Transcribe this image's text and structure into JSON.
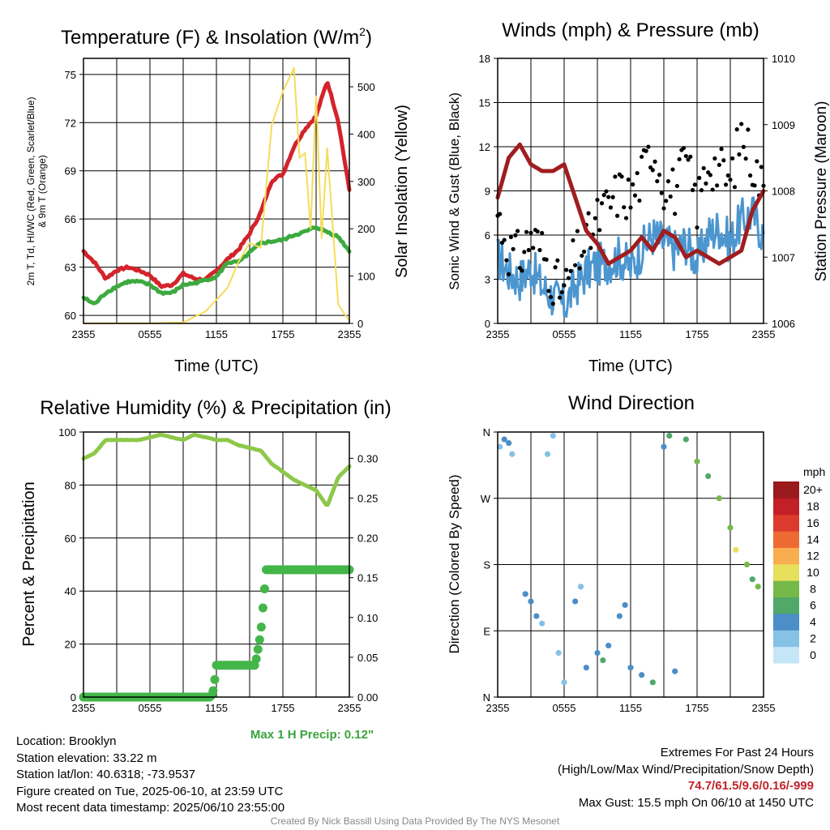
{
  "colors": {
    "temp": "#d4232b",
    "dewpoint": "#3caa3f",
    "insolation": "#f6dc5a",
    "wind": "#4c96d0",
    "gust": "#000000",
    "pressure": "#a01d1f",
    "rh": "#8dc84a",
    "precip": "#43b649"
  },
  "chart_data": [
    {
      "type": "line",
      "title": "Temperature (F) & Insolation (W/m²)",
      "xlabel": "Time (UTC)",
      "ylabel_left": "2m T, Td, HI/WC (Red, Green, Scarlet/Blue) & 9m T (Orange)",
      "ylabel_right": "Solar Insolation (Yellow)",
      "xlim": [
        0,
        24
      ],
      "ylim_left": [
        59.5,
        76
      ],
      "ylim_right": [
        0,
        560
      ],
      "x_ticks": [
        "2355",
        "0555",
        "1155",
        "1755",
        "2355"
      ],
      "y_ticks_left": [
        "60",
        "63",
        "66",
        "69",
        "72",
        "75"
      ],
      "y_ticks_right": [
        "0",
        "100",
        "200",
        "300",
        "400",
        "500"
      ],
      "grid": true,
      "series": [
        {
          "name": "2m T",
          "axis": "left",
          "color_key": "temp",
          "x": [
            0,
            1,
            2,
            3,
            4,
            5,
            6,
            7,
            8,
            9,
            10,
            11,
            12,
            13,
            14,
            15,
            16,
            17,
            18,
            19,
            20,
            21,
            22,
            23,
            24
          ],
          "values": [
            64.0,
            63.3,
            62.3,
            62.8,
            63.0,
            62.8,
            62.5,
            61.8,
            61.9,
            62.6,
            62.3,
            62.2,
            62.8,
            63.5,
            64.1,
            65.1,
            66.4,
            68.4,
            68.8,
            70.5,
            71.6,
            72.4,
            74.6,
            72.1,
            67.8
          ]
        },
        {
          "name": "2m Td",
          "axis": "left",
          "color_key": "dewpoint",
          "x": [
            0,
            1,
            2,
            3,
            4,
            5,
            6,
            7,
            8,
            9,
            10,
            11,
            12,
            13,
            14,
            15,
            16,
            17,
            18,
            19,
            20,
            21,
            22,
            23,
            24
          ],
          "values": [
            61.1,
            60.7,
            61.4,
            61.8,
            62.1,
            62.1,
            61.9,
            61.4,
            61.4,
            61.9,
            62.0,
            62.2,
            62.4,
            63.3,
            63.3,
            63.9,
            64.5,
            64.6,
            64.7,
            65.0,
            65.2,
            65.5,
            65.2,
            64.9,
            64.0
          ]
        },
        {
          "name": "Solar Insolation",
          "axis": "right",
          "color_key": "insolation",
          "x": [
            0,
            6,
            9,
            11,
            12,
            13,
            14,
            15,
            16,
            17,
            18,
            19,
            19.5,
            20,
            20.5,
            21,
            21.5,
            22,
            23,
            24
          ],
          "values": [
            0,
            0,
            2,
            25,
            50,
            75,
            130,
            170,
            160,
            420,
            490,
            540,
            350,
            360,
            200,
            480,
            180,
            370,
            40,
            5
          ]
        }
      ]
    },
    {
      "type": "line",
      "title": "Winds (mph) & Pressure (mb)",
      "xlabel": "Time (UTC)",
      "ylabel_left": "Sonic Wind & Gust (Blue, Black)",
      "ylabel_right": "Station Pressure (Maroon)",
      "xlim": [
        0,
        24
      ],
      "ylim_left": [
        0,
        18
      ],
      "ylim_right": [
        1006,
        1010
      ],
      "x_ticks": [
        "2355",
        "0555",
        "1155",
        "1755",
        "2355"
      ],
      "y_ticks_left": [
        "0",
        "3",
        "6",
        "9",
        "12",
        "15",
        "18"
      ],
      "y_ticks_right": [
        "1006",
        "1007",
        "1008",
        "1009",
        "1010"
      ],
      "grid": true,
      "series": [
        {
          "name": "Sonic Wind",
          "axis": "left",
          "color_key": "wind",
          "x": [
            0,
            1,
            2,
            3,
            4,
            5,
            6,
            7,
            8,
            9,
            10,
            11,
            12,
            13,
            14,
            15,
            16,
            17,
            18,
            19,
            20,
            21,
            22,
            23,
            24
          ],
          "values": [
            4.5,
            3.5,
            3.0,
            3.8,
            2.5,
            1.8,
            1.2,
            2.5,
            3.5,
            4.0,
            4.2,
            4.5,
            3.8,
            5.0,
            6.0,
            5.5,
            5.0,
            5.5,
            4.2,
            6.0,
            6.5,
            5.5,
            7.0,
            7.5,
            6.0
          ]
        },
        {
          "name": "Gust",
          "axis": "left",
          "color_key": "gust",
          "x": [
            0,
            1,
            2,
            3,
            4,
            5,
            6,
            7,
            8,
            9,
            10,
            11,
            12,
            13,
            14,
            15,
            16,
            17,
            18,
            19,
            20,
            21,
            22,
            23,
            24
          ],
          "values": [
            7.5,
            5.0,
            4.5,
            6.0,
            5.0,
            3.0,
            2.0,
            4.5,
            5.5,
            7.0,
            8.0,
            9.0,
            8.5,
            10.0,
            12.0,
            9.5,
            9.0,
            11.0,
            8.0,
            11.0,
            10.5,
            9.5,
            13.0,
            11.0,
            9.0
          ]
        },
        {
          "name": "Station Pressure",
          "axis": "right",
          "color_key": "pressure",
          "x": [
            0,
            1,
            2,
            3,
            4,
            5,
            6,
            7,
            8,
            9,
            10,
            11,
            12,
            13,
            14,
            15,
            16,
            17,
            18,
            19,
            20,
            21,
            22,
            23,
            24
          ],
          "values": [
            1007.9,
            1008.5,
            1008.7,
            1008.4,
            1008.3,
            1008.3,
            1008.4,
            1007.9,
            1007.4,
            1007.2,
            1006.9,
            1007.0,
            1007.1,
            1007.3,
            1007.1,
            1007.4,
            1007.3,
            1007.0,
            1007.1,
            1007.0,
            1006.9,
            1007.0,
            1007.1,
            1007.7,
            1008.0
          ]
        }
      ]
    },
    {
      "type": "line",
      "title": "Relative Humidity (%) & Precipitation (in)",
      "xlabel": "",
      "ylabel_left": "Percent & Precipitation",
      "ylabel_right": "",
      "xlim": [
        0,
        24
      ],
      "ylim_left": [
        0,
        100
      ],
      "ylim_right": [
        0,
        0.333
      ],
      "x_ticks": [
        "2355",
        "0555",
        "1155",
        "1755",
        "2355"
      ],
      "y_ticks_left": [
        "0",
        "20",
        "40",
        "60",
        "80",
        "100"
      ],
      "y_ticks_right": [
        "0.00",
        "0.05",
        "0.10",
        "0.15",
        "0.20",
        "0.25",
        "0.30"
      ],
      "grid": true,
      "series": [
        {
          "name": "Relative Humidity",
          "axis": "left",
          "color_key": "rh",
          "x": [
            0,
            1,
            2,
            3,
            4,
            5,
            6,
            7,
            8,
            9,
            10,
            11,
            12,
            13,
            14,
            15,
            16,
            17,
            18,
            19,
            20,
            21,
            22,
            23,
            24
          ],
          "values": [
            90,
            92,
            97,
            97,
            97,
            97,
            98,
            99,
            98,
            97,
            99,
            98,
            97,
            97,
            95,
            94,
            93,
            88,
            85,
            82,
            80,
            78,
            72,
            83,
            87
          ]
        },
        {
          "name": "Precipitation",
          "axis": "right",
          "color_key": "precip",
          "x": [
            0,
            11.5,
            11.75,
            12,
            15.5,
            15.75,
            16,
            16.25,
            16.5,
            24
          ],
          "values": [
            0,
            0,
            0.01,
            0.04,
            0.04,
            0.06,
            0.08,
            0.12,
            0.16,
            0.16
          ]
        }
      ]
    },
    {
      "type": "scatter",
      "title": "Wind Direction",
      "xlabel": "",
      "ylabel_left": "Direction (Colored By Speed)",
      "xlim": [
        0,
        24
      ],
      "ylim_left": [
        0,
        360
      ],
      "x_ticks": [
        "2355",
        "0555",
        "1155",
        "1755",
        "2355"
      ],
      "y_ticks_left": [
        "N",
        "E",
        "S",
        "W",
        "N"
      ],
      "grid": true,
      "colorbar": {
        "unit": "mph",
        "labels": [
          "0",
          "2",
          "4",
          "6",
          "8",
          "10",
          "12",
          "14",
          "16",
          "18",
          "20+"
        ],
        "colors": [
          "#c5e6f7",
          "#86c1e6",
          "#4b8ec8",
          "#50a968",
          "#76b94b",
          "#e7e05c",
          "#f8ae4f",
          "#ee6a33",
          "#db3a2c",
          "#c31f26",
          "#9b1a1d"
        ]
      },
      "points": [
        {
          "x": 0.2,
          "dir": 340,
          "spd": 2
        },
        {
          "x": 0.6,
          "dir": 350,
          "spd": 4
        },
        {
          "x": 1.0,
          "dir": 345,
          "spd": 3
        },
        {
          "x": 1.3,
          "dir": 330,
          "spd": 2
        },
        {
          "x": 2.5,
          "dir": 140,
          "spd": 4
        },
        {
          "x": 3.0,
          "dir": 130,
          "spd": 3
        },
        {
          "x": 3.5,
          "dir": 110,
          "spd": 4
        },
        {
          "x": 4.0,
          "dir": 100,
          "spd": 2
        },
        {
          "x": 4.5,
          "dir": 330,
          "spd": 1
        },
        {
          "x": 5.0,
          "dir": 355,
          "spd": 1
        },
        {
          "x": 5.5,
          "dir": 60,
          "spd": 2
        },
        {
          "x": 6.0,
          "dir": 20,
          "spd": 1
        },
        {
          "x": 7.0,
          "dir": 130,
          "spd": 3
        },
        {
          "x": 7.5,
          "dir": 150,
          "spd": 2
        },
        {
          "x": 8.0,
          "dir": 40,
          "spd": 3
        },
        {
          "x": 9.0,
          "dir": 60,
          "spd": 4
        },
        {
          "x": 9.5,
          "dir": 50,
          "spd": 5
        },
        {
          "x": 10.0,
          "dir": 70,
          "spd": 3
        },
        {
          "x": 11.0,
          "dir": 110,
          "spd": 4
        },
        {
          "x": 11.5,
          "dir": 125,
          "spd": 3
        },
        {
          "x": 12.0,
          "dir": 40,
          "spd": 3
        },
        {
          "x": 13.0,
          "dir": 30,
          "spd": 4
        },
        {
          "x": 14.0,
          "dir": 20,
          "spd": 5
        },
        {
          "x": 15.0,
          "dir": 340,
          "spd": 4
        },
        {
          "x": 15.5,
          "dir": 355,
          "spd": 6
        },
        {
          "x": 16.0,
          "dir": 35,
          "spd": 4
        },
        {
          "x": 17.0,
          "dir": 350,
          "spd": 5
        },
        {
          "x": 18.0,
          "dir": 320,
          "spd": 7
        },
        {
          "x": 19.0,
          "dir": 300,
          "spd": 6
        },
        {
          "x": 20.0,
          "dir": 270,
          "spd": 8
        },
        {
          "x": 21.0,
          "dir": 230,
          "spd": 8
        },
        {
          "x": 21.5,
          "dir": 200,
          "spd": 9
        },
        {
          "x": 22.5,
          "dir": 180,
          "spd": 7
        },
        {
          "x": 23.0,
          "dir": 160,
          "spd": 6
        },
        {
          "x": 23.5,
          "dir": 150,
          "spd": 7
        }
      ]
    }
  ],
  "texts": {
    "title_temp_pre": "Temperature (F) & Insolation (W/m",
    "title_temp_sup": "2",
    "title_temp_post": ")",
    "title_wind": "Winds (mph) & Pressure (mb)",
    "title_rh": "Relative Humidity (%) & Precipitation (in)",
    "title_dir": "Wind Direction",
    "xlabel": "Time (UTC)",
    "temp_ylabel_left_1": "2m T, Td, HI/WC (Red, Green, Scarlet/Blue)",
    "temp_ylabel_left_2": "& 9m T (Orange)",
    "temp_ylabel_right": "Solar Insolation (Yellow)",
    "wind_ylabel_left": "Sonic Wind & Gust (Blue, Black)",
    "wind_ylabel_right": "Station Pressure (Maroon)",
    "rh_ylabel_left": "Percent & Precipitation",
    "dir_ylabel_left": "Direction (Colored By Speed)",
    "max_precip": "Max 1 H Precip: 0.12\"",
    "colorbar_unit": "mph"
  },
  "info": {
    "location": "Location: Brooklyn",
    "elevation": "Station elevation: 33.22 m",
    "latlon": "Station lat/lon: 40.6318; -73.9537",
    "created": "Figure created on Tue, 2025-06-10, at 23:59 UTC",
    "recent": "Most recent data timestamp: 2025/06/10 23:55:00",
    "extremes_title": "Extremes For Past 24 Hours",
    "extremes_sub": "(High/Low/Max Wind/Precipitation/Snow Depth)",
    "extremes_values": "74.7/61.5/9.6/0.16/-999",
    "max_gust": "Max Gust: 15.5 mph On 06/10 at 1450 UTC",
    "credit": "Created By Nick Bassill Using Data Provided By The NYS Mesonet"
  }
}
